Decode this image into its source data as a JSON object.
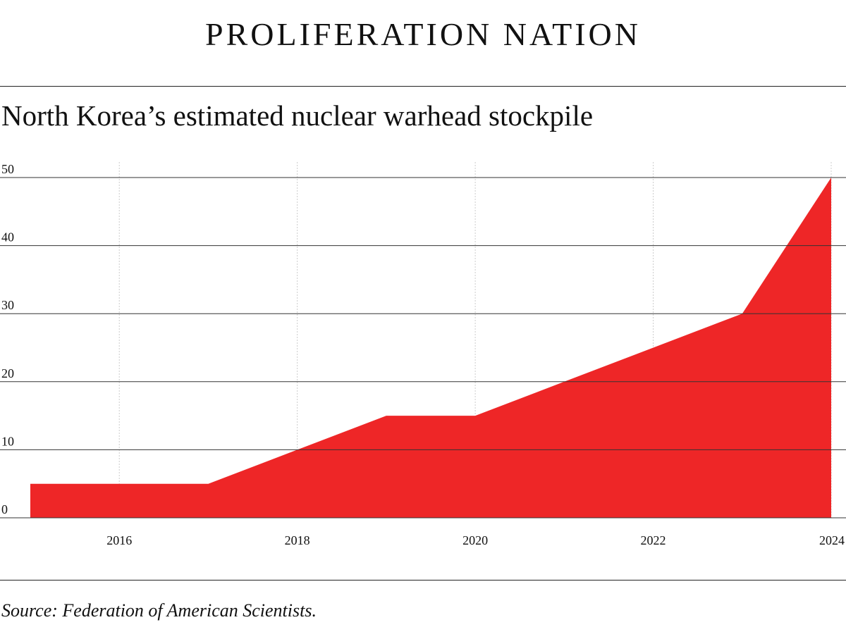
{
  "header": {
    "kicker": "PROLIFERATION NATION"
  },
  "footer": {
    "source": "Source: Federation of American Scientists."
  },
  "colors": {
    "area_fill": "#ee2627",
    "grid_major": "#333333",
    "grid_minor": "#cccccc"
  },
  "chart_data": {
    "type": "area",
    "title": "North Korea’s estimated nuclear warhead stockpile",
    "xlabel": "",
    "ylabel": "",
    "x": [
      2015,
      2016,
      2017,
      2018,
      2019,
      2020,
      2021,
      2022,
      2023,
      2024
    ],
    "values": [
      5,
      5,
      5,
      10,
      15,
      15,
      20,
      25,
      30,
      50
    ],
    "xlim": [
      2015,
      2024
    ],
    "ylim": [
      0,
      50
    ],
    "x_ticks": [
      "2016",
      "2018",
      "2020",
      "2022",
      "2024"
    ],
    "y_ticks": [
      "0",
      "10",
      "20",
      "30",
      "40",
      "50"
    ],
    "grid": true,
    "legend": "none"
  }
}
